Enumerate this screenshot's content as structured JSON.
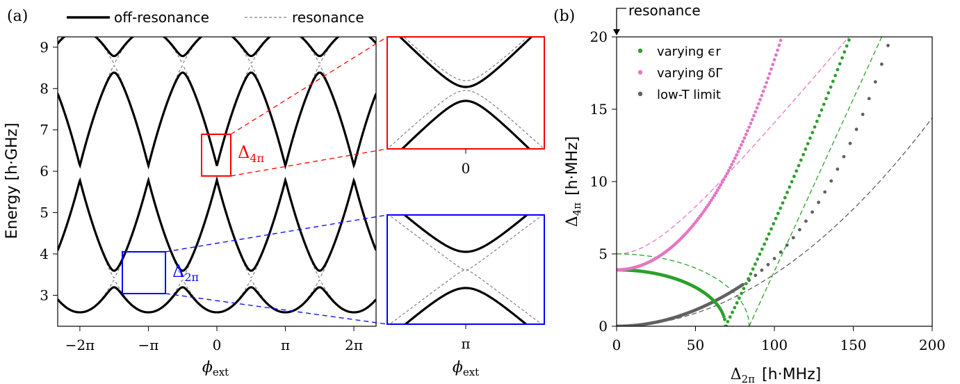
{
  "panels": {
    "a": "(a)",
    "b": "(b)"
  },
  "legend_top": {
    "off": "off-resonance",
    "res": "resonance"
  },
  "chart_data": [
    {
      "id": "main-spectrum",
      "type": "line",
      "xlabel": "ϕ",
      "xlabel_sub": "ext",
      "ylabel": "Energy [h·GHz]",
      "ylim": [
        2.25,
        9.25
      ],
      "xticks": [
        "−2π",
        "−π",
        "0",
        "π",
        "2π"
      ],
      "xtick_values": [
        -6.2832,
        -3.1416,
        0,
        3.1416,
        6.2832
      ],
      "yticks": [
        "3",
        "4",
        "5",
        "6",
        "7",
        "8",
        "9"
      ],
      "series": [
        {
          "name": "off-resonance",
          "style": "solid",
          "color": "#000000"
        },
        {
          "name": "resonance",
          "style": "dashed",
          "color": "#808080"
        }
      ],
      "annotations": [
        {
          "text": "Δ",
          "sub": "4π",
          "color": "#ff0000"
        },
        {
          "text": "Δ",
          "sub": "2π",
          "color": "#0000ff"
        }
      ]
    },
    {
      "id": "inset-top",
      "type": "line",
      "xticks": [
        "0"
      ],
      "color": "#ff0000"
    },
    {
      "id": "inset-bottom",
      "type": "line",
      "xticks": [
        "π"
      ],
      "xlabel": "ϕ",
      "xlabel_sub": "ext",
      "color": "#0000ff"
    },
    {
      "id": "gap-plot",
      "type": "scatter",
      "xlabel": "Δ",
      "xlabel_sub": "2π",
      "xlabel_unit": "[h·MHz]",
      "ylabel": "Δ",
      "ylabel_sub": "4π",
      "ylabel_unit": "[h·MHz]",
      "xlim": [
        0,
        200
      ],
      "ylim": [
        0,
        20
      ],
      "xticks": [
        "0",
        "50",
        "100",
        "150",
        "200"
      ],
      "yticks": [
        "0",
        "5",
        "10",
        "15",
        "20"
      ],
      "annotation": "resonance",
      "series": [
        {
          "name": "varying ϵr",
          "color": "#2ca02c"
        },
        {
          "name": "varying δΓ",
          "color": "#e377c2"
        },
        {
          "name": "low-T limit",
          "color": "#606060"
        }
      ]
    }
  ]
}
